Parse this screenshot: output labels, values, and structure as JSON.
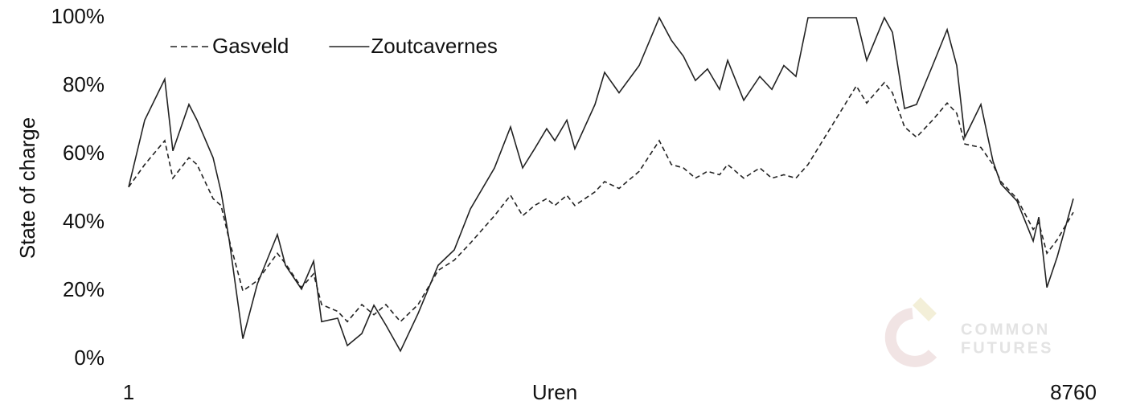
{
  "chart_data": {
    "type": "line",
    "x_label": "Uren",
    "y_label": "State of charge",
    "watermark": [
      "COMMON",
      "FUTURES"
    ],
    "xlim": [
      1,
      8760
    ],
    "xticks": [
      1,
      8760
    ],
    "ylim": [
      0,
      100
    ],
    "yticks": [
      {
        "value": 0,
        "label": "0%"
      },
      {
        "value": 20,
        "label": "20%"
      },
      {
        "value": 40,
        "label": "40%"
      },
      {
        "value": 60,
        "label": "60%"
      },
      {
        "value": 80,
        "label": "80%"
      },
      {
        "value": 100,
        "label": "100%"
      }
    ],
    "legend": "top-left",
    "x": [
      1,
      150,
      336,
      411,
      560,
      635,
      784,
      858,
      933,
      1060,
      1194,
      1380,
      1455,
      1604,
      1716,
      1790,
      1939,
      2029,
      2163,
      2275,
      2386,
      2521,
      2685,
      2871,
      3020,
      3170,
      3393,
      3542,
      3654,
      3765,
      3877,
      3952,
      4064,
      4138,
      4325,
      4414,
      4548,
      4735,
      4921,
      5033,
      5145,
      5256,
      5368,
      5480,
      5555,
      5704,
      5853,
      5965,
      6076,
      6188,
      6300,
      6748,
      6844,
      7008,
      7083,
      7195,
      7306,
      7455,
      7590,
      7679,
      7754,
      7903,
      8015,
      8089,
      8238,
      8388,
      8440,
      8515,
      8611,
      8760
    ],
    "series": [
      {
        "name": "Gasveld",
        "color": "#222222",
        "dash": true,
        "values": [
          50.4,
          57,
          64,
          53,
          59,
          57,
          47,
          45,
          35,
          20,
          23,
          31,
          28,
          21,
          25,
          16,
          14,
          11,
          16,
          13,
          16,
          11,
          16,
          26,
          29,
          34,
          42,
          48,
          42,
          45,
          47,
          45,
          48,
          45,
          49,
          52,
          50,
          55,
          64,
          57,
          56,
          53,
          55,
          54,
          57,
          53,
          56,
          53,
          54,
          53,
          57,
          80,
          75,
          81,
          78,
          68,
          65,
          70,
          75,
          72,
          63,
          62,
          57,
          52,
          47,
          38,
          40,
          31,
          35,
          43
        ]
      },
      {
        "name": "Zoutcavernes",
        "color": "#222222",
        "dash": false,
        "values": [
          50.4,
          70,
          82,
          61,
          74.6,
          70,
          59,
          49,
          35,
          6,
          22,
          36.5,
          27.5,
          20.5,
          28.7,
          11,
          12,
          4,
          7.5,
          15.8,
          10,
          2.4,
          13.4,
          27.5,
          32,
          44,
          56,
          68,
          56,
          61.6,
          67.5,
          64,
          70,
          61.6,
          74.6,
          84,
          78,
          86,
          100,
          93.4,
          88.7,
          81.6,
          85,
          79,
          87.5,
          75.8,
          82.8,
          79,
          86,
          82.8,
          100,
          100,
          87.5,
          100,
          95.7,
          73.4,
          74.6,
          86,
          96.5,
          86,
          65,
          74.6,
          58,
          51.3,
          46.3,
          34.6,
          41.6,
          21,
          30,
          47
        ]
      }
    ]
  }
}
